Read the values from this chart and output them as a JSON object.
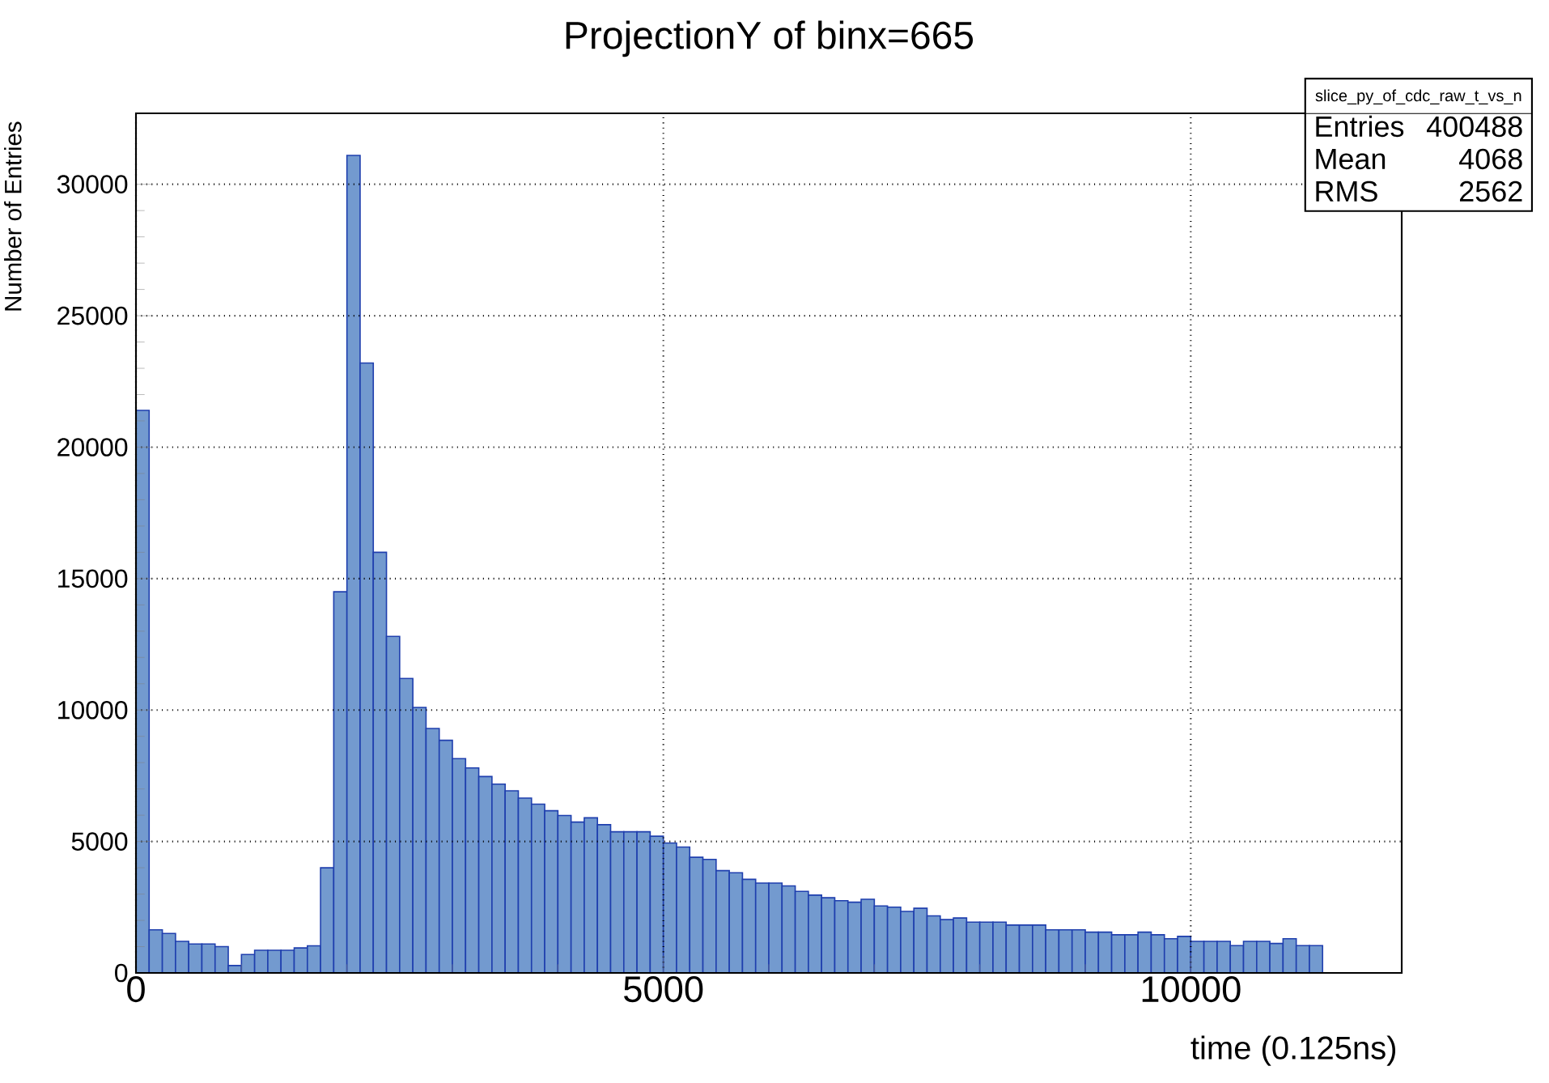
{
  "chart_data": {
    "type": "histogram",
    "title": "ProjectionY of binx=665",
    "xlabel": "time (0.125ns)",
    "ylabel": "Number of Entries",
    "bins": [
      0,
      125,
      250,
      375,
      500,
      625,
      750,
      875,
      1000,
      1125,
      1250,
      1375,
      1500,
      1625,
      1750,
      1875,
      2000,
      2125,
      2250,
      2375,
      2500,
      2625,
      2750,
      2875,
      3000,
      3125,
      3250,
      3375,
      3500,
      3625,
      3750,
      3875,
      4000,
      4125,
      4250,
      4375,
      4500,
      4625,
      4750,
      4875,
      5000,
      5125,
      5250,
      5375,
      5500,
      5625,
      5750,
      5875,
      6000,
      6125,
      6250,
      6375,
      6500,
      6625,
      6750,
      6875,
      7000,
      7125,
      7250,
      7375,
      7500,
      7625,
      7750,
      7875,
      8000,
      8125,
      8250,
      8375,
      8500,
      8625,
      8750,
      8875,
      9000,
      9125,
      9250,
      9375,
      9500,
      9625,
      9750,
      9875,
      10000,
      10125,
      10250,
      10375,
      10500,
      10625,
      10750,
      10875,
      11000,
      11125,
      11250
    ],
    "values": [
      21400,
      1640,
      1500,
      1200,
      1100,
      1100,
      1000,
      280,
      700,
      860,
      860,
      860,
      950,
      1030,
      4000,
      14500,
      31100,
      23200,
      16000,
      12800,
      11200,
      10100,
      9300,
      8850,
      8150,
      7800,
      7470,
      7180,
      6930,
      6650,
      6420,
      6170,
      5990,
      5740,
      5900,
      5640,
      5370,
      5370,
      5370,
      5200,
      4940,
      4790,
      4400,
      4320,
      3890,
      3810,
      3560,
      3420,
      3420,
      3310,
      3100,
      2960,
      2860,
      2750,
      2690,
      2800,
      2550,
      2500,
      2340,
      2460,
      2170,
      2030,
      2090,
      1930,
      1930,
      1930,
      1820,
      1820,
      1820,
      1640,
      1640,
      1640,
      1550,
      1550,
      1450,
      1450,
      1550,
      1450,
      1300,
      1390,
      1200,
      1200,
      1200,
      1040,
      1200,
      1200,
      1120,
      1300,
      1040,
      1040
    ],
    "color": "#739acf",
    "xlim": [
      0,
      12000
    ],
    "ylim": [
      0,
      32700
    ],
    "xticks": [
      0,
      5000,
      10000
    ],
    "yticks": [
      0,
      5000,
      10000,
      15000,
      20000,
      25000,
      30000
    ],
    "grid": true,
    "annotations": [
      "slice_py_of_cdc_raw_t_vs_n",
      "Entries",
      "400488",
      "Mean",
      "4068",
      "RMS",
      "2562"
    ]
  }
}
